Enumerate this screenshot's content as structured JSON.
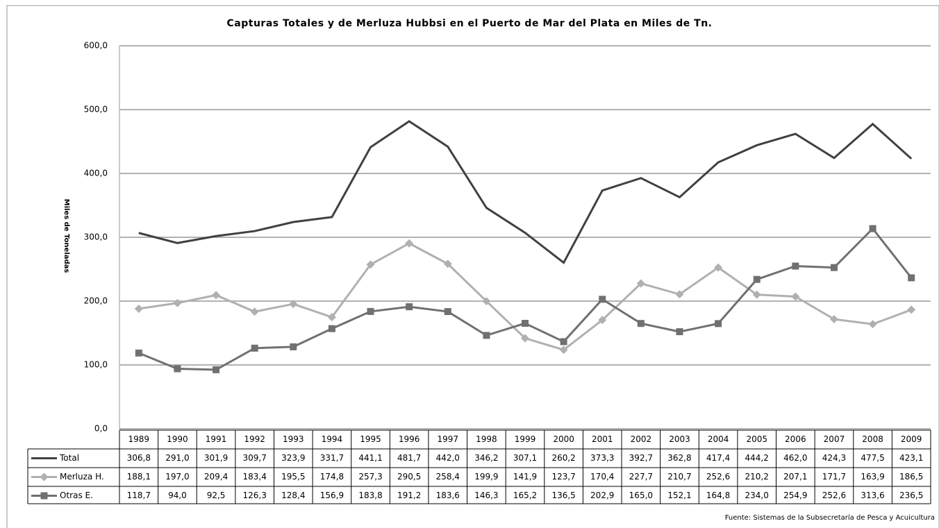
{
  "chart_data": {
    "type": "line",
    "title": "Capturas Totales y de Merluza Hubbsi en el Puerto de Mar del Plata en Miles de Tn.",
    "y_label": "Miles de Toneladas",
    "source": "Fuente: Sistemas de la Subsecretaría de Pesca y Acuicultura",
    "categories": [
      "1989",
      "1990",
      "1991",
      "1992",
      "1993",
      "1994",
      "1995",
      "1996",
      "1997",
      "1998",
      "1999",
      "2000",
      "2001",
      "2002",
      "2003",
      "2004",
      "2005",
      "2006",
      "2007",
      "2008",
      "2009"
    ],
    "series": [
      {
        "name": "Total",
        "color": "#404040",
        "marker": "none",
        "values": [
          306.8,
          291.0,
          301.9,
          309.7,
          323.9,
          331.7,
          441.1,
          481.7,
          442.0,
          346.2,
          307.1,
          260.2,
          373.3,
          392.7,
          362.8,
          417.4,
          444.2,
          462.0,
          424.3,
          477.5,
          423.1
        ],
        "value_labels": [
          "306,8",
          "291,0",
          "301,9",
          "309,7",
          "323,9",
          "331,7",
          "441,1",
          "481,7",
          "442,0",
          "346,2",
          "307,1",
          "260,2",
          "373,3",
          "392,7",
          "362,8",
          "417,4",
          "444,2",
          "462,0",
          "424,3",
          "477,5",
          "423,1"
        ]
      },
      {
        "name": "Merluza H.",
        "color": "#b0b0b0",
        "marker": "diamond",
        "values": [
          188.1,
          197.0,
          209.4,
          183.4,
          195.5,
          174.8,
          257.3,
          290.5,
          258.4,
          199.9,
          141.9,
          123.7,
          170.4,
          227.7,
          210.7,
          252.6,
          210.2,
          207.1,
          171.7,
          163.9,
          186.5
        ],
        "value_labels": [
          "188,1",
          "197,0",
          "209,4",
          "183,4",
          "195,5",
          "174,8",
          "257,3",
          "290,5",
          "258,4",
          "199,9",
          "141,9",
          "123,7",
          "170,4",
          "227,7",
          "210,7",
          "252,6",
          "210,2",
          "207,1",
          "171,7",
          "163,9",
          "186,5"
        ]
      },
      {
        "name": "Otras E.",
        "color": "#707070",
        "marker": "square",
        "values": [
          118.7,
          94.0,
          92.5,
          126.3,
          128.4,
          156.9,
          183.8,
          191.2,
          183.6,
          146.3,
          165.2,
          136.5,
          202.9,
          165.0,
          152.1,
          164.8,
          234.0,
          254.9,
          252.6,
          313.6,
          236.5
        ],
        "value_labels": [
          "118,7",
          "94,0",
          "92,5",
          "126,3",
          "128,4",
          "156,9",
          "183,8",
          "191,2",
          "183,6",
          "146,3",
          "165,2",
          "136,5",
          "202,9",
          "165,0",
          "152,1",
          "164,8",
          "234,0",
          "254,9",
          "252,6",
          "313,6",
          "236,5"
        ]
      }
    ],
    "ylim": [
      0,
      600
    ],
    "yticks": [
      {
        "value": 0,
        "label": "0,0"
      },
      {
        "value": 100,
        "label": "100,0"
      },
      {
        "value": 200,
        "label": "200,0"
      },
      {
        "value": 300,
        "label": "300,0"
      },
      {
        "value": 400,
        "label": "400,0"
      },
      {
        "value": 500,
        "label": "500,0"
      },
      {
        "value": 600,
        "label": "600,0"
      }
    ],
    "grid": true
  }
}
